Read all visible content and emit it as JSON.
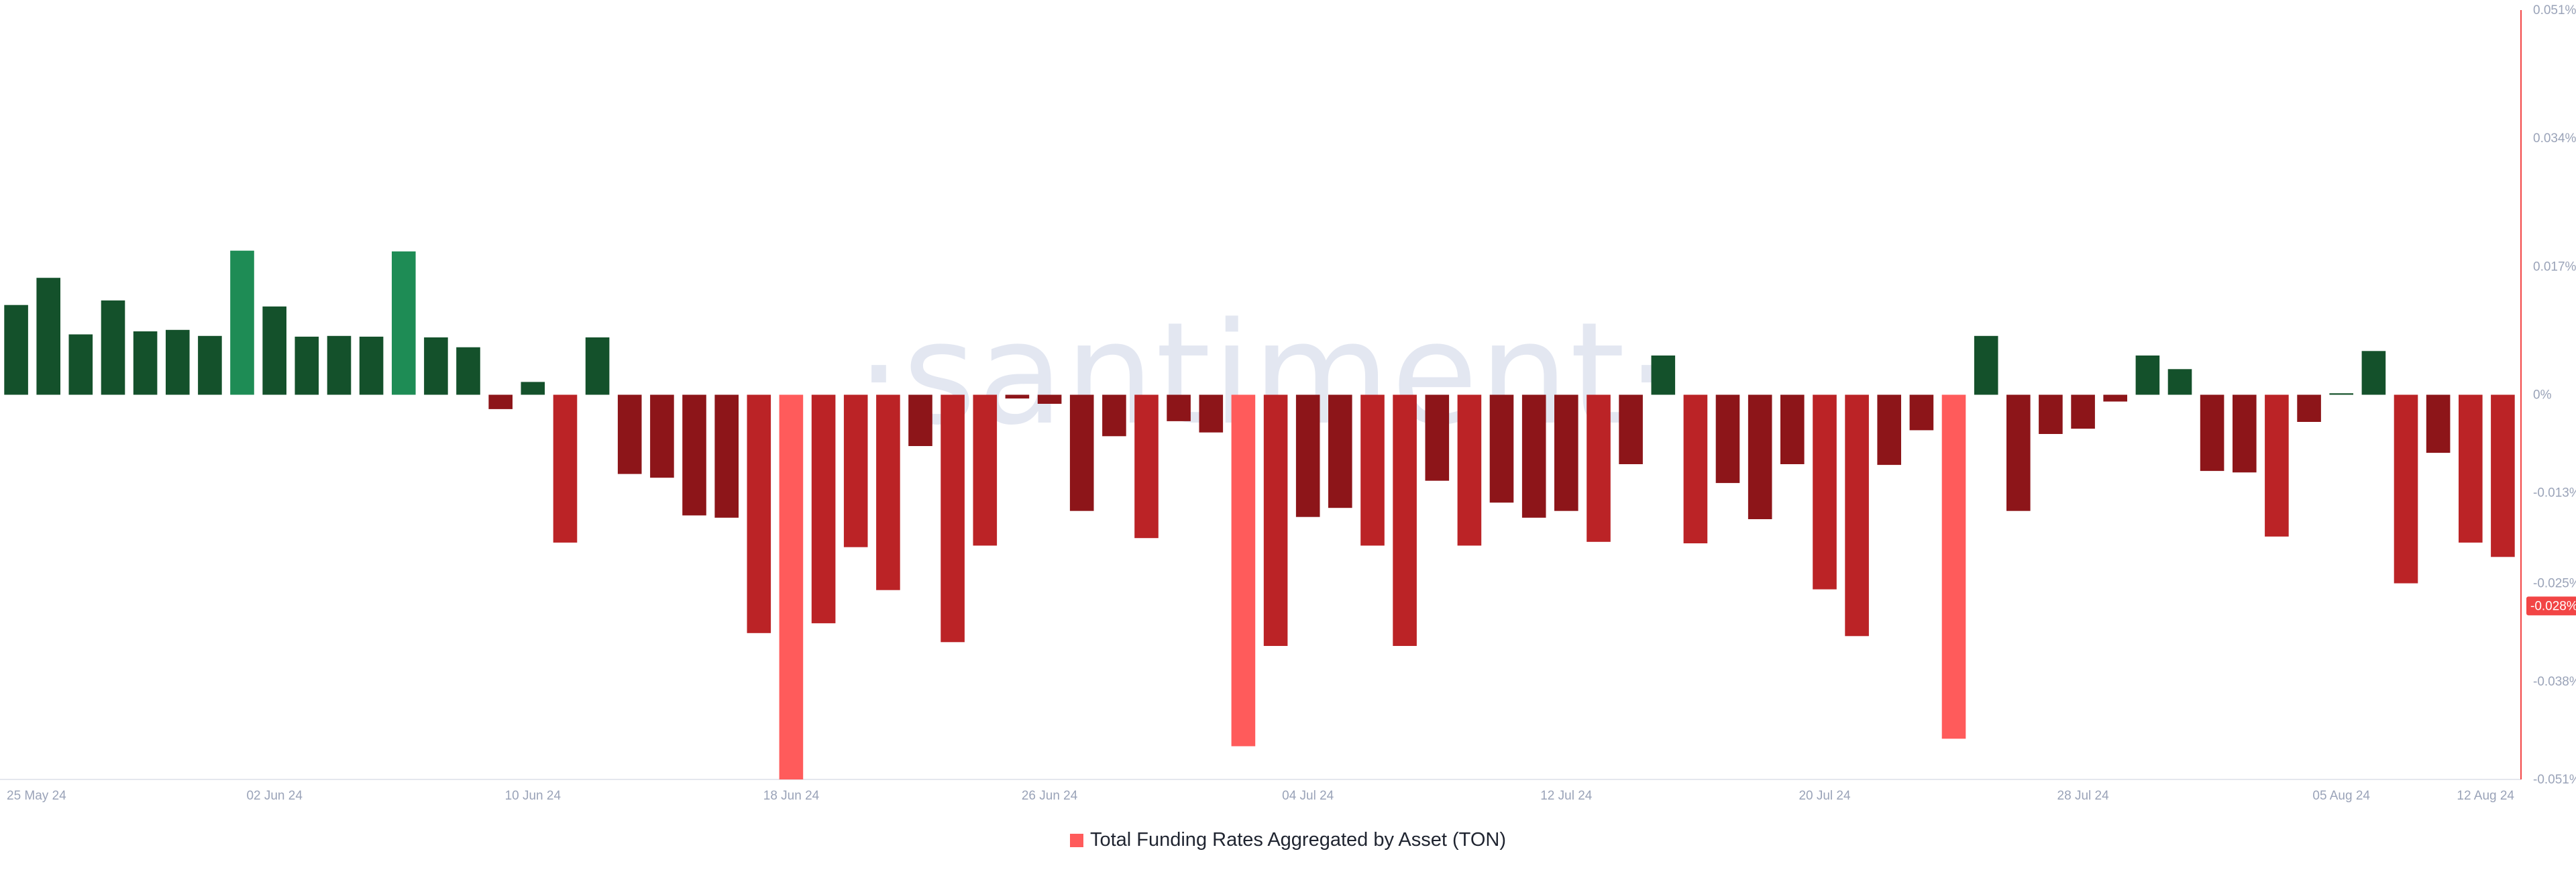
{
  "watermark": "·santiment·",
  "chart_data": {
    "type": "bar",
    "series": [
      {
        "name": "Total Funding Rates Aggregated by Asset (TON)",
        "values": [
          0.0119,
          0.0155,
          0.008,
          0.0125,
          0.0084,
          0.0086,
          0.0078,
          0.0191,
          0.0117,
          0.0077,
          0.0078,
          0.0077,
          0.019,
          0.0076,
          0.0063,
          -0.0019,
          0.0017,
          -0.0196,
          0.0076,
          -0.0105,
          -0.011,
          -0.016,
          -0.0163,
          -0.0316,
          -0.051,
          -0.0303,
          -0.0202,
          -0.0259,
          -0.0068,
          -0.0328,
          -0.02,
          -0.0005,
          -0.0012,
          -0.0154,
          -0.0055,
          -0.019,
          -0.0035,
          -0.005,
          -0.0466,
          -0.0333,
          -0.0162,
          -0.015,
          -0.02,
          -0.0333,
          -0.0114,
          -0.02,
          -0.0143,
          -0.0163,
          -0.0154,
          -0.0195,
          -0.0092,
          0.0052,
          -0.0197,
          -0.0117,
          -0.0165,
          -0.0092,
          -0.0258,
          -0.032,
          -0.0093,
          -0.0047,
          -0.0456,
          0.0078,
          -0.0154,
          -0.0052,
          -0.0045,
          -0.0009,
          0.0052,
          0.0034,
          -0.0101,
          -0.0103,
          -0.0188,
          -0.0036,
          0.0002,
          0.0058,
          -0.025,
          -0.0077,
          -0.0196,
          -0.0215
        ]
      }
    ],
    "x_tick_labels": [
      "25 May 24",
      "02 Jun 24",
      "10 Jun 24",
      "18 Jun 24",
      "26 Jun 24",
      "04 Jul 24",
      "12 Jul 24",
      "20 Jul 24",
      "28 Jul 24",
      "05 Aug 24",
      "12 Aug 24"
    ],
    "x_tick_bar_index": [
      1,
      8,
      16,
      24,
      32,
      40,
      48,
      56,
      64,
      72,
      79
    ],
    "y_tick_labels": [
      "0.051%",
      "0.034%",
      "0.017%",
      "0%",
      "-0.013%",
      "-0.025%",
      "-0.038%",
      "-0.051%"
    ],
    "y_tick_values": [
      0.051,
      0.034,
      0.017,
      0,
      -0.013,
      -0.025,
      -0.038,
      -0.051
    ],
    "ylim": [
      -0.051,
      0.051
    ],
    "y_unit": "%",
    "current_value_tag": {
      "label": "-0.028%",
      "value": -0.028
    },
    "legend": {
      "label": "Total Funding Rates Aggregated by Asset (TON)",
      "position": "bottom-center",
      "color": "#ff5b5b"
    },
    "colors": {
      "positive_dark": "#14512b",
      "positive_bright": "#1e8c55",
      "negative_dark": "#8d1519",
      "negative_medium": "#bb2326",
      "negative_bright": "#ff5b5b",
      "axis": "#f24545"
    },
    "grid": false
  }
}
